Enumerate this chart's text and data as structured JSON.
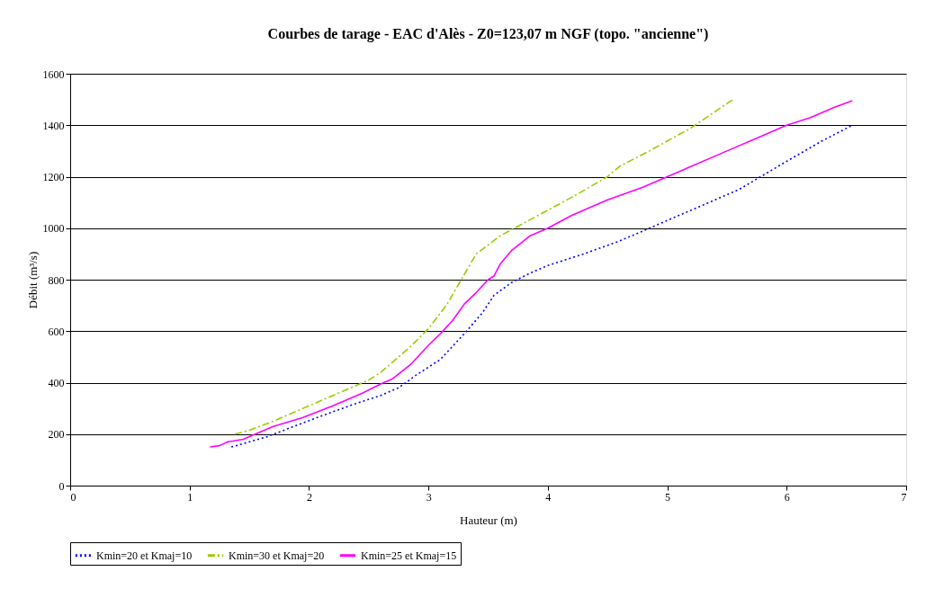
{
  "chart_data": {
    "type": "line",
    "title": "Courbes de tarage - EAC d'Alès - Z0=123,07 m NGF (topo. \"ancienne\")",
    "xlabel": "Hauteur (m)",
    "ylabel": "Débit (m³/s)",
    "xlim": [
      0,
      7
    ],
    "xticks": [
      0,
      1,
      2,
      3,
      4,
      5,
      6,
      7
    ],
    "ylim": [
      0,
      1600
    ],
    "yticks": [
      0,
      200,
      400,
      600,
      800,
      1000,
      1200,
      1400,
      1600
    ],
    "grid": "y",
    "legend": "bottom",
    "marker": "none",
    "series": [
      {
        "name": "Kmin=20 et Kmaj=10",
        "color": "#0000ff",
        "line_style": "dotted",
        "x": [
          1.35,
          1.65,
          1.9,
          2.1,
          2.4,
          2.6,
          2.75,
          2.9,
          3.1,
          3.3,
          3.45,
          3.55,
          3.7,
          3.85,
          4.0,
          4.3,
          4.6,
          4.8,
          5.0,
          5.3,
          5.6,
          6.0,
          6.3,
          6.55
        ],
        "values": [
          150,
          190,
          235,
          270,
          320,
          350,
          380,
          430,
          490,
          590,
          670,
          740,
          790,
          825,
          855,
          900,
          950,
          990,
          1030,
          1090,
          1150,
          1260,
          1340,
          1400
        ]
      },
      {
        "name": "Kmin=30 et Kmaj=20",
        "color": "#99cc00",
        "line_style": "dashed",
        "x": [
          1.38,
          1.5,
          1.7,
          1.9,
          2.1,
          2.3,
          2.5,
          2.6,
          2.7,
          2.85,
          3.0,
          3.15,
          3.3,
          3.4,
          3.6,
          3.8,
          4.0,
          4.2,
          4.5,
          4.6,
          4.85,
          5.2,
          5.55
        ],
        "values": [
          200,
          215,
          250,
          290,
          330,
          370,
          410,
          440,
          480,
          540,
          610,
          700,
          820,
          900,
          970,
          1020,
          1070,
          1120,
          1200,
          1240,
          1300,
          1390,
          1500
        ]
      },
      {
        "name": "Kmin=25 et Kmaj=15",
        "color": "#ff00ff",
        "line_style": "solid",
        "x": [
          1.17,
          1.25,
          1.32,
          1.45,
          1.55,
          1.7,
          1.95,
          2.2,
          2.45,
          2.6,
          2.7,
          2.85,
          3.0,
          3.1,
          3.2,
          3.3,
          3.4,
          3.5,
          3.55,
          3.6,
          3.7,
          3.85,
          4.0,
          4.2,
          4.5,
          4.8,
          5.0,
          5.5,
          5.8,
          6.0,
          6.2,
          6.4,
          6.55
        ],
        "values": [
          150,
          155,
          170,
          180,
          200,
          230,
          265,
          310,
          360,
          395,
          415,
          470,
          545,
          590,
          640,
          705,
          750,
          800,
          815,
          860,
          915,
          970,
          1000,
          1050,
          1110,
          1160,
          1200,
          1300,
          1360,
          1400,
          1430,
          1470,
          1495
        ]
      }
    ]
  }
}
